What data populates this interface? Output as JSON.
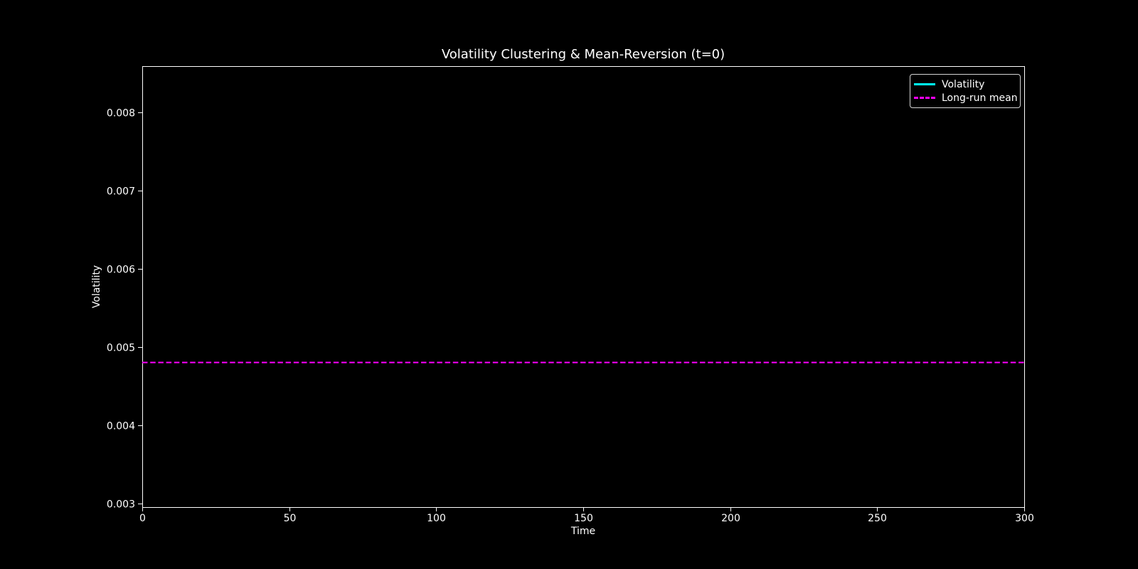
{
  "chart_data": {
    "type": "line",
    "title": "Volatility Clustering & Mean-Reversion (t=0)",
    "xlabel": "Time",
    "ylabel": "Volatility",
    "xlim": [
      0,
      300
    ],
    "ylim": [
      0.00295,
      0.00859
    ],
    "x_ticks": [
      0,
      50,
      100,
      150,
      200,
      250,
      300
    ],
    "x_tick_labels": [
      "0",
      "50",
      "100",
      "150",
      "200",
      "250",
      "300"
    ],
    "y_ticks": [
      0.003,
      0.004,
      0.005,
      0.006,
      0.007,
      0.008
    ],
    "y_tick_labels": [
      "0.003",
      "0.004",
      "0.005",
      "0.006",
      "0.007",
      "0.008"
    ],
    "grid": false,
    "legend_position": "upper right",
    "colors": {
      "background": "#000000",
      "text": "#ffffff",
      "spine": "#ffffff",
      "volatility_line": "#00ffff",
      "mean_line": "#ff00ff",
      "legend_border": "#d4d4d4"
    },
    "legend": {
      "entries": [
        {
          "label": "Volatility",
          "color": "#00ffff",
          "line_style": "solid"
        },
        {
          "label": "Long-run mean",
          "color": "#ff00ff",
          "line_style": "dashed"
        }
      ]
    },
    "series": [
      {
        "name": "Volatility",
        "color": "#00ffff",
        "line_style": "solid",
        "x": [],
        "y": []
      },
      {
        "name": "Long-run mean",
        "color": "#ff00ff",
        "line_style": "dashed",
        "constant_y": 0.0048
      }
    ]
  }
}
